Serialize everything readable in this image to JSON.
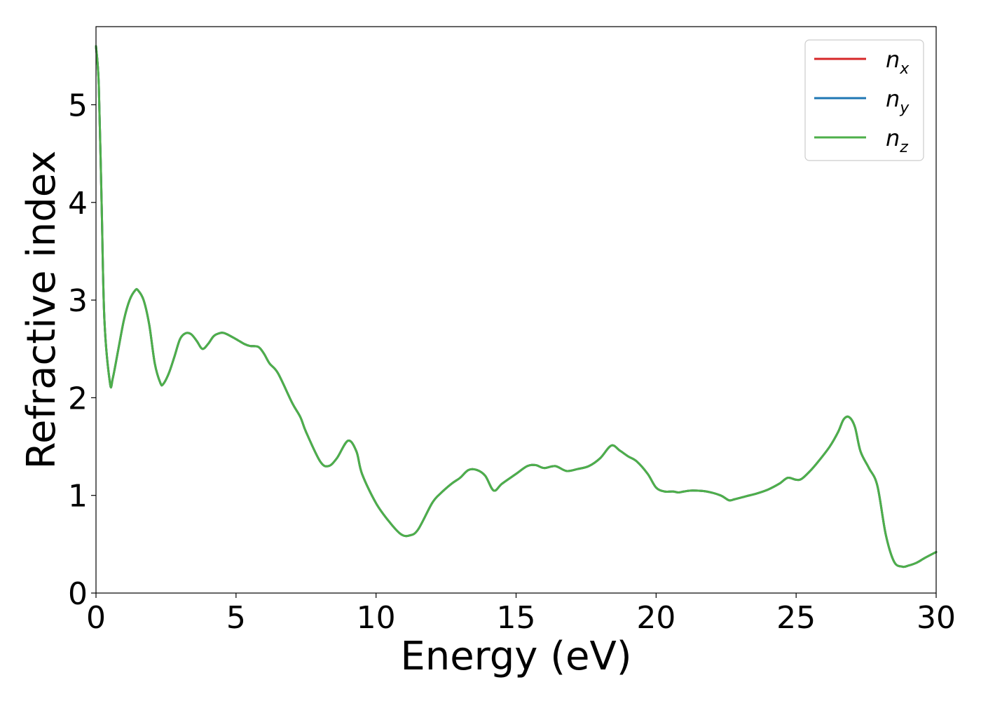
{
  "chart_data": {
    "type": "line",
    "xlabel": "Energy (eV)",
    "ylabel": "Refractive index",
    "xlim": [
      0,
      30
    ],
    "ylim": [
      0,
      5.8
    ],
    "xticks": [
      0,
      5,
      10,
      15,
      20,
      25,
      30
    ],
    "xtick_labels": [
      "0",
      "5",
      "10",
      "15",
      "20",
      "25",
      "30"
    ],
    "yticks": [
      0,
      1,
      2,
      3,
      4,
      5
    ],
    "ytick_labels": [
      "0",
      "1",
      "2",
      "3",
      "4",
      "5"
    ],
    "grid": false,
    "legend_position": "top-right",
    "x": [
      0.0,
      0.1,
      0.2,
      0.3,
      0.5,
      0.6,
      0.8,
      1.0,
      1.2,
      1.4,
      1.5,
      1.7,
      1.9,
      2.1,
      2.3,
      2.4,
      2.6,
      2.8,
      3.0,
      3.2,
      3.4,
      3.6,
      3.8,
      4.0,
      4.2,
      4.4,
      4.6,
      5.0,
      5.3,
      5.5,
      5.8,
      6.0,
      6.2,
      6.5,
      7.0,
      7.3,
      7.5,
      8.0,
      8.3,
      8.6,
      9.0,
      9.3,
      9.5,
      10.0,
      10.5,
      10.9,
      11.2,
      11.5,
      12.0,
      12.3,
      12.7,
      13.0,
      13.3,
      13.6,
      13.9,
      14.2,
      14.5,
      15.0,
      15.4,
      15.7,
      16.0,
      16.4,
      16.8,
      17.2,
      17.6,
      18.0,
      18.4,
      18.7,
      19.0,
      19.3,
      19.7,
      20.0,
      20.3,
      20.6,
      20.8,
      21.0,
      21.3,
      21.8,
      22.3,
      22.6,
      22.8,
      23.2,
      23.6,
      24.0,
      24.4,
      24.7,
      25.0,
      25.2,
      25.5,
      25.8,
      26.2,
      26.5,
      26.7,
      26.9,
      27.1,
      27.3,
      27.6,
      27.9,
      28.2,
      28.5,
      28.8,
      29.0,
      29.3,
      29.6,
      30.0
    ],
    "series": [
      {
        "name": "n_x",
        "values": [
          5.6,
          5.2,
          4.0,
          2.8,
          2.15,
          2.2,
          2.5,
          2.8,
          3.0,
          3.1,
          3.1,
          3.0,
          2.75,
          2.35,
          2.15,
          2.14,
          2.25,
          2.42,
          2.6,
          2.66,
          2.65,
          2.58,
          2.5,
          2.55,
          2.63,
          2.66,
          2.66,
          2.6,
          2.55,
          2.53,
          2.52,
          2.45,
          2.35,
          2.25,
          1.95,
          1.8,
          1.65,
          1.35,
          1.3,
          1.38,
          1.56,
          1.45,
          1.22,
          0.92,
          0.72,
          0.6,
          0.59,
          0.65,
          0.92,
          1.02,
          1.12,
          1.18,
          1.26,
          1.26,
          1.2,
          1.05,
          1.12,
          1.22,
          1.3,
          1.31,
          1.28,
          1.3,
          1.25,
          1.27,
          1.3,
          1.38,
          1.51,
          1.46,
          1.4,
          1.35,
          1.22,
          1.08,
          1.04,
          1.04,
          1.03,
          1.04,
          1.05,
          1.04,
          1.0,
          0.95,
          0.96,
          0.99,
          1.02,
          1.06,
          1.12,
          1.18,
          1.16,
          1.17,
          1.25,
          1.35,
          1.5,
          1.65,
          1.78,
          1.8,
          1.7,
          1.45,
          1.28,
          1.1,
          0.6,
          0.32,
          0.27,
          0.28,
          0.31,
          0.36,
          0.42
        ]
      },
      {
        "name": "n_y",
        "values": [
          5.6,
          5.2,
          4.0,
          2.8,
          2.15,
          2.2,
          2.5,
          2.8,
          3.0,
          3.1,
          3.1,
          3.0,
          2.75,
          2.35,
          2.15,
          2.14,
          2.25,
          2.42,
          2.6,
          2.66,
          2.65,
          2.58,
          2.5,
          2.55,
          2.63,
          2.66,
          2.66,
          2.6,
          2.55,
          2.53,
          2.52,
          2.45,
          2.35,
          2.25,
          1.95,
          1.8,
          1.65,
          1.35,
          1.3,
          1.38,
          1.56,
          1.45,
          1.22,
          0.92,
          0.72,
          0.6,
          0.59,
          0.65,
          0.92,
          1.02,
          1.12,
          1.18,
          1.26,
          1.26,
          1.2,
          1.05,
          1.12,
          1.22,
          1.3,
          1.31,
          1.28,
          1.3,
          1.25,
          1.27,
          1.3,
          1.38,
          1.51,
          1.46,
          1.4,
          1.35,
          1.22,
          1.08,
          1.04,
          1.04,
          1.03,
          1.04,
          1.05,
          1.04,
          1.0,
          0.95,
          0.96,
          0.99,
          1.02,
          1.06,
          1.12,
          1.18,
          1.16,
          1.17,
          1.25,
          1.35,
          1.5,
          1.65,
          1.78,
          1.8,
          1.7,
          1.45,
          1.28,
          1.1,
          0.6,
          0.32,
          0.27,
          0.28,
          0.31,
          0.36,
          0.42
        ]
      },
      {
        "name": "n_z",
        "values": [
          5.6,
          5.2,
          4.0,
          2.8,
          2.15,
          2.2,
          2.5,
          2.8,
          3.0,
          3.1,
          3.1,
          3.0,
          2.75,
          2.35,
          2.15,
          2.14,
          2.25,
          2.42,
          2.6,
          2.66,
          2.65,
          2.58,
          2.5,
          2.55,
          2.63,
          2.66,
          2.66,
          2.6,
          2.55,
          2.53,
          2.52,
          2.45,
          2.35,
          2.25,
          1.95,
          1.8,
          1.65,
          1.35,
          1.3,
          1.38,
          1.56,
          1.45,
          1.22,
          0.92,
          0.72,
          0.6,
          0.59,
          0.65,
          0.92,
          1.02,
          1.12,
          1.18,
          1.26,
          1.26,
          1.2,
          1.05,
          1.12,
          1.22,
          1.3,
          1.31,
          1.28,
          1.3,
          1.25,
          1.27,
          1.3,
          1.38,
          1.51,
          1.46,
          1.4,
          1.35,
          1.22,
          1.08,
          1.04,
          1.04,
          1.03,
          1.04,
          1.05,
          1.04,
          1.0,
          0.95,
          0.96,
          0.99,
          1.02,
          1.06,
          1.12,
          1.18,
          1.16,
          1.17,
          1.25,
          1.35,
          1.5,
          1.65,
          1.78,
          1.8,
          1.7,
          1.45,
          1.28,
          1.1,
          0.6,
          0.32,
          0.27,
          0.28,
          0.31,
          0.36,
          0.42
        ]
      }
    ],
    "legend": [
      {
        "base": "n",
        "sub": "x",
        "color": "#d62728"
      },
      {
        "base": "n",
        "sub": "y",
        "color": "#1f77b4"
      },
      {
        "base": "n",
        "sub": "z",
        "color": "#4daf4a"
      }
    ]
  }
}
